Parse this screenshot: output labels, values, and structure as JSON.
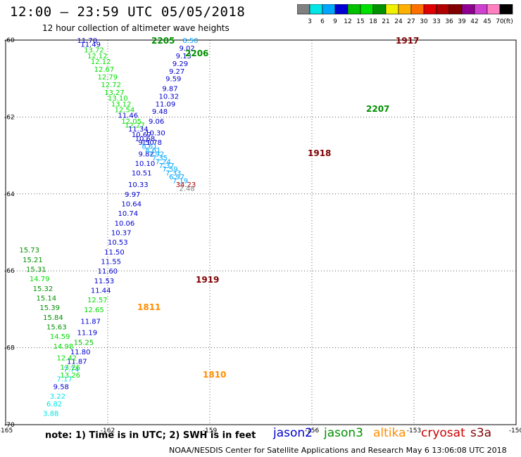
{
  "header": {
    "title": "12:00 – 23:59 UTC 05/05/2018",
    "subtitle": "12 hour collection of altimeter wave heights"
  },
  "colorbar": {
    "colors": [
      "#808080",
      "#00e5e5",
      "#00a6ff",
      "#0000d0",
      "#00c000",
      "#00e000",
      "#009000",
      "#f0f000",
      "#ffb000",
      "#ff7000",
      "#e00000",
      "#b00000",
      "#800000",
      "#900090",
      "#d040d0",
      "#ff80c0",
      "#000000"
    ],
    "labels": [
      "3",
      "6",
      "9",
      "12",
      "15",
      "18",
      "21",
      "24",
      "27",
      "30",
      "33",
      "36",
      "39",
      "42",
      "45",
      "70"
    ],
    "unit": "(ft)"
  },
  "footer": {
    "note": "note:  1) Time is in UTC;  2) SWH is in feet",
    "credit": "NOAA/NESDIS Center for Satellite Applications and Research    May  6 13:06:08 UTC 2018",
    "satellites": [
      {
        "name": "jason2",
        "color": "#0000cc"
      },
      {
        "name": "jason3",
        "color": "#009000"
      },
      {
        "name": "altika",
        "color": "#ff8c00"
      },
      {
        "name": "cryosat",
        "color": "#cc0000"
      },
      {
        "name": "s3a",
        "color": "#800000"
      }
    ]
  },
  "chart_data": {
    "type": "scatter",
    "xlim": [
      -165,
      -150
    ],
    "ylim": [
      -70,
      -60
    ],
    "x_ticks": [
      "-165",
      "-162",
      "-159",
      "-156",
      "-153",
      "-150"
    ],
    "y_ticks": [
      "-60",
      "-62",
      "-64",
      "-66",
      "-68",
      "-70"
    ],
    "grid": true,
    "points": [
      {
        "x": -159.8,
        "y": -60.0,
        "v": "8.50",
        "c": "#00a6ff"
      },
      {
        "x": -159.9,
        "y": -60.2,
        "v": "9.02",
        "c": "#0000d0"
      },
      {
        "x": -160.0,
        "y": -60.4,
        "v": "9.13",
        "c": "#0000d0"
      },
      {
        "x": -160.1,
        "y": -60.6,
        "v": "9.29",
        "c": "#0000d0"
      },
      {
        "x": -160.2,
        "y": -60.8,
        "v": "9.27",
        "c": "#0000d0"
      },
      {
        "x": -160.3,
        "y": -61.0,
        "v": "9.59",
        "c": "#0000d0"
      },
      {
        "x": -160.4,
        "y": -61.25,
        "v": "9.87",
        "c": "#0000d0"
      },
      {
        "x": -160.5,
        "y": -61.45,
        "v": "10.32",
        "c": "#0000d0"
      },
      {
        "x": -160.6,
        "y": -61.65,
        "v": "11.09",
        "c": "#0000d0"
      },
      {
        "x": -160.7,
        "y": -61.85,
        "v": "9.48",
        "c": "#0000d0"
      },
      {
        "x": -160.8,
        "y": -62.1,
        "v": "9.06",
        "c": "#0000d0"
      },
      {
        "x": -160.9,
        "y": -62.4,
        "v": "10.30",
        "c": "#0000d0"
      },
      {
        "x": -161.0,
        "y": -62.65,
        "v": "11.78",
        "c": "#0000d0"
      },
      {
        "x": -161.1,
        "y": -62.95,
        "v": "9.82",
        "c": "#0000d0"
      },
      {
        "x": -161.2,
        "y": -63.2,
        "v": "10.10",
        "c": "#0000d0"
      },
      {
        "x": -161.3,
        "y": -63.45,
        "v": "10.51",
        "c": "#0000d0"
      },
      {
        "x": -161.4,
        "y": -63.75,
        "v": "10.33",
        "c": "#0000d0"
      },
      {
        "x": -161.5,
        "y": -64.0,
        "v": "9.97",
        "c": "#0000d0"
      },
      {
        "x": -161.6,
        "y": -64.25,
        "v": "10.64",
        "c": "#0000d0"
      },
      {
        "x": -161.7,
        "y": -64.5,
        "v": "10.74",
        "c": "#0000d0"
      },
      {
        "x": -161.8,
        "y": -64.75,
        "v": "10.06",
        "c": "#0000d0"
      },
      {
        "x": -161.9,
        "y": -65.0,
        "v": "10.37",
        "c": "#0000d0"
      },
      {
        "x": -162.0,
        "y": -65.25,
        "v": "10.53",
        "c": "#0000d0"
      },
      {
        "x": -162.1,
        "y": -65.5,
        "v": "11.50",
        "c": "#0000d0"
      },
      {
        "x": -162.2,
        "y": -65.75,
        "v": "11.55",
        "c": "#0000d0"
      },
      {
        "x": -162.3,
        "y": -66.0,
        "v": "11.60",
        "c": "#0000d0"
      },
      {
        "x": -162.4,
        "y": -66.25,
        "v": "11.53",
        "c": "#0000d0"
      },
      {
        "x": -162.5,
        "y": -66.5,
        "v": "11.44",
        "c": "#0000d0"
      },
      {
        "x": -162.6,
        "y": -66.75,
        "v": "12.57",
        "c": "#00e000"
      },
      {
        "x": -162.7,
        "y": -67.0,
        "v": "12.65",
        "c": "#00e000"
      },
      {
        "x": -162.8,
        "y": -67.3,
        "v": "11.87",
        "c": "#0000d0"
      },
      {
        "x": -162.9,
        "y": -67.6,
        "v": "11.19",
        "c": "#0000d0"
      },
      {
        "x": -163.0,
        "y": -67.85,
        "v": "15.25",
        "c": "#00c000"
      },
      {
        "x": -163.1,
        "y": -68.1,
        "v": "11.80",
        "c": "#0000d0"
      },
      {
        "x": -163.2,
        "y": -68.35,
        "v": "11.87",
        "c": "#0000d0"
      },
      {
        "x": -163.3,
        "y": -68.55,
        "v": "7.74",
        "c": "#00a6ff"
      },
      {
        "x": -163.4,
        "y": -68.7,
        "v": "13.26",
        "c": "#00e000"
      },
      {
        "x": -163.5,
        "y": -68.8,
        "v": "7.17",
        "c": "#00e5e5"
      },
      {
        "x": -163.6,
        "y": -69.0,
        "v": "9.58",
        "c": "#0000d0"
      },
      {
        "x": -163.7,
        "y": -69.25,
        "v": "3.22",
        "c": "#00e5e5"
      },
      {
        "x": -163.8,
        "y": -69.45,
        "v": "6.82",
        "c": "#00e5e5"
      },
      {
        "x": -163.9,
        "y": -69.7,
        "v": "3.88",
        "c": "#00e5e5"
      },
      {
        "x": -164.6,
        "y": -65.45,
        "v": "15.73",
        "c": "#009000"
      },
      {
        "x": -164.5,
        "y": -65.7,
        "v": "15.21",
        "c": "#009000"
      },
      {
        "x": -164.4,
        "y": -65.95,
        "v": "15.31",
        "c": "#009000"
      },
      {
        "x": -164.3,
        "y": -66.2,
        "v": "14.79",
        "c": "#00e000"
      },
      {
        "x": -164.2,
        "y": -66.45,
        "v": "15.32",
        "c": "#009000"
      },
      {
        "x": -164.1,
        "y": -66.7,
        "v": "15.14",
        "c": "#009000"
      },
      {
        "x": -164.0,
        "y": -66.95,
        "v": "15.39",
        "c": "#009000"
      },
      {
        "x": -163.9,
        "y": -67.2,
        "v": "15.84",
        "c": "#009000"
      },
      {
        "x": -163.8,
        "y": -67.45,
        "v": "15.63",
        "c": "#009000"
      },
      {
        "x": -163.7,
        "y": -67.7,
        "v": "14.59",
        "c": "#00e000"
      },
      {
        "x": -163.6,
        "y": -67.95,
        "v": "14.98",
        "c": "#00e000"
      },
      {
        "x": -163.5,
        "y": -68.25,
        "v": "12.42",
        "c": "#00e000"
      },
      {
        "x": -163.4,
        "y": -68.5,
        "v": "13.26",
        "c": "#00e000"
      },
      {
        "x": -162.9,
        "y": -60.0,
        "v": "11.70",
        "c": "#0000d0"
      },
      {
        "x": -162.8,
        "y": -60.1,
        "v": "11.49",
        "c": "#0000d0"
      },
      {
        "x": -162.7,
        "y": -60.25,
        "v": "13.72",
        "c": "#00e000"
      },
      {
        "x": -162.6,
        "y": -60.4,
        "v": "12.12",
        "c": "#00e000"
      },
      {
        "x": -162.5,
        "y": -60.55,
        "v": "12.12",
        "c": "#00e000"
      },
      {
        "x": -162.4,
        "y": -60.75,
        "v": "12.67",
        "c": "#00e000"
      },
      {
        "x": -162.3,
        "y": -60.95,
        "v": "12.79",
        "c": "#00e000"
      },
      {
        "x": -162.2,
        "y": -61.15,
        "v": "12.72",
        "c": "#00e000"
      },
      {
        "x": -162.1,
        "y": -61.35,
        "v": "13.27",
        "c": "#00e000"
      },
      {
        "x": -162.0,
        "y": -61.5,
        "v": "13.10",
        "c": "#00e000"
      },
      {
        "x": -161.9,
        "y": -61.65,
        "v": "13.12",
        "c": "#00e000"
      },
      {
        "x": -161.8,
        "y": -61.8,
        "v": "12.54",
        "c": "#00e000"
      },
      {
        "x": -161.7,
        "y": -61.95,
        "v": "11.46",
        "c": "#0000d0"
      },
      {
        "x": -161.6,
        "y": -62.1,
        "v": "12.05",
        "c": "#00e000"
      },
      {
        "x": -161.5,
        "y": -62.2,
        "v": "12.27",
        "c": "#00e000"
      },
      {
        "x": -161.4,
        "y": -62.3,
        "v": "11.34",
        "c": "#0000d0"
      },
      {
        "x": -161.3,
        "y": -62.45,
        "v": "10.67",
        "c": "#0000d0"
      },
      {
        "x": -161.2,
        "y": -62.55,
        "v": "10.68",
        "c": "#0000d0"
      },
      {
        "x": -161.1,
        "y": -62.65,
        "v": "9.50",
        "c": "#0000d0"
      },
      {
        "x": -161.0,
        "y": -62.75,
        "v": "8.61",
        "c": "#00a6ff"
      },
      {
        "x": -160.9,
        "y": -62.85,
        "v": "8.61",
        "c": "#00a6ff"
      },
      {
        "x": -160.8,
        "y": -62.95,
        "v": "7.92",
        "c": "#00a6ff"
      },
      {
        "x": -160.7,
        "y": -63.05,
        "v": "7.35",
        "c": "#00a6ff"
      },
      {
        "x": -160.6,
        "y": -63.15,
        "v": "7.24",
        "c": "#00a6ff"
      },
      {
        "x": -160.5,
        "y": -63.25,
        "v": "7.37",
        "c": "#00a6ff"
      },
      {
        "x": -160.4,
        "y": -63.35,
        "v": "7.59",
        "c": "#00a6ff"
      },
      {
        "x": -160.3,
        "y": -63.45,
        "v": "7.33",
        "c": "#00a6ff"
      },
      {
        "x": -160.2,
        "y": -63.55,
        "v": "6.97",
        "c": "#00a6ff"
      },
      {
        "x": -160.1,
        "y": -63.65,
        "v": "7.19",
        "c": "#00a6ff"
      },
      {
        "x": -160.0,
        "y": -63.75,
        "v": "34.23",
        "c": "#b00000"
      },
      {
        "x": -159.9,
        "y": -63.85,
        "v": "2.48",
        "c": "#808080"
      }
    ],
    "annotations": [
      {
        "text": "2205",
        "c": "#009000"
      },
      {
        "text": "2206",
        "c": "#009000"
      },
      {
        "text": "1917",
        "c": "#800000"
      },
      {
        "text": "2207",
        "c": "#009000"
      },
      {
        "text": "1918",
        "c": "#800000"
      },
      {
        "text": "1919",
        "c": "#800000"
      },
      {
        "text": "1811",
        "c": "#ff8c00"
      },
      {
        "text": "1810",
        "c": "#ff8c00"
      }
    ]
  }
}
